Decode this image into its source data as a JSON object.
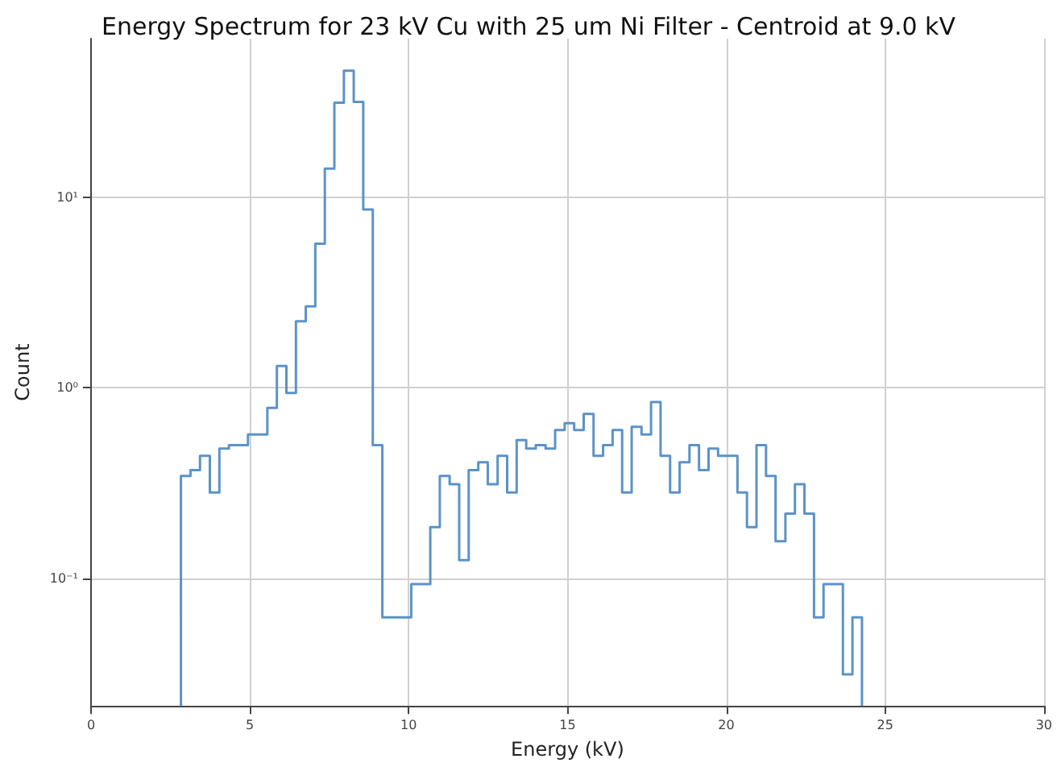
{
  "chart_data": {
    "type": "histogram",
    "title": "Energy Spectrum for 23 kV Cu with 25 um Ni Filter - Centroid at 9.0 kV",
    "xlabel": "Energy (kV)",
    "ylabel": "Count",
    "color": "#5b93c7",
    "log": "y",
    "grid": true,
    "line_style": "solid",
    "bins": [
      2.83,
      3.13,
      3.43,
      3.74,
      4.04,
      4.34,
      4.64,
      4.94,
      5.25,
      5.55,
      5.85,
      6.15,
      6.45,
      6.76,
      7.06,
      7.36,
      7.66,
      7.96,
      8.27,
      8.57,
      8.87,
      9.17,
      9.47,
      9.78,
      10.08,
      10.38,
      10.68,
      10.98,
      11.29,
      11.59,
      11.89,
      12.19,
      12.49,
      12.8,
      13.1,
      13.4,
      13.7,
      14.0,
      14.31,
      14.61,
      14.91,
      15.21,
      15.51,
      15.82,
      16.12,
      16.42,
      16.72,
      17.02,
      17.33,
      17.63,
      17.93,
      18.23,
      18.53,
      18.84,
      19.14,
      19.44,
      19.74,
      20.04,
      20.35,
      20.65,
      20.95,
      21.25,
      21.55,
      21.86,
      22.16,
      22.46,
      22.76,
      23.06,
      23.37,
      23.67,
      23.97,
      24.27
    ],
    "values": [
      0.345,
      0.37,
      0.44,
      0.283,
      0.48,
      0.5,
      0.5,
      0.57,
      0.57,
      0.785,
      1.3,
      0.94,
      2.23,
      2.67,
      5.69,
      14.1,
      31.2,
      45.9,
      31.5,
      8.6,
      0.5,
      0.0626,
      0.0626,
      0.0626,
      0.0935,
      0.0935,
      0.186,
      0.345,
      0.312,
      0.125,
      0.37,
      0.407,
      0.312,
      0.44,
      0.283,
      0.532,
      0.48,
      0.5,
      0.48,
      0.6,
      0.652,
      0.6,
      0.73,
      0.44,
      0.5,
      0.6,
      0.283,
      0.624,
      0.57,
      0.842,
      0.44,
      0.283,
      0.407,
      0.5,
      0.37,
      0.48,
      0.44,
      0.44,
      0.283,
      0.186,
      0.5,
      0.345,
      0.157,
      0.219,
      0.312,
      0.219,
      0.0626,
      0.0935,
      0.0935,
      0.0315,
      0.0626
    ],
    "xlim": [
      0,
      30
    ],
    "xticks": [
      0,
      5,
      10,
      15,
      20,
      25,
      30
    ],
    "ylim": [
      0.0215,
      67.6
    ],
    "yticks": [
      {
        "value": 0.1,
        "label": "10⁻¹"
      },
      {
        "value": 1,
        "label": "10⁰"
      },
      {
        "value": 10,
        "label": "10¹"
      }
    ]
  }
}
